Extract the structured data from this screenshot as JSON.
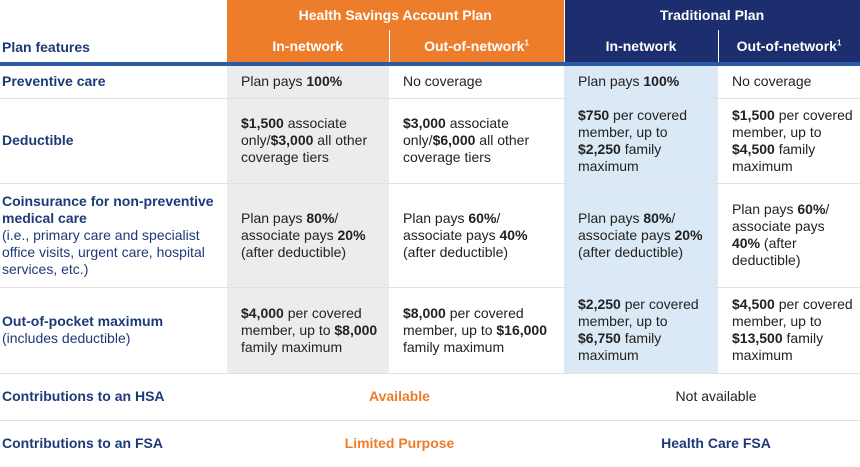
{
  "header": {
    "plan_features": "Plan features",
    "plans": [
      {
        "name": "Health Savings Account Plan",
        "columns": [
          {
            "label": "In-network"
          },
          {
            "label": "Out-of-network",
            "note": "1"
          }
        ]
      },
      {
        "name": "Traditional Plan",
        "columns": [
          {
            "label": "In-network"
          },
          {
            "label": "Out-of-network",
            "note": "1"
          }
        ]
      }
    ]
  },
  "rows": [
    {
      "feature": "Preventive care",
      "cells": [
        {
          "runs": [
            "Plan pays ",
            {
              "text": "100%",
              "bold": true
            }
          ]
        },
        {
          "runs": [
            "No coverage"
          ]
        },
        {
          "runs": [
            "Plan pays ",
            {
              "text": "100%",
              "bold": true
            }
          ]
        },
        {
          "runs": [
            "No coverage"
          ]
        }
      ]
    },
    {
      "feature": "Deductible",
      "cells": [
        {
          "runs": [
            {
              "text": "$1,500",
              "bold": true
            },
            " associate only/",
            {
              "text": "$3,000",
              "bold": true
            },
            " all other coverage tiers"
          ]
        },
        {
          "runs": [
            {
              "text": "$3,000",
              "bold": true
            },
            " associate only/",
            {
              "text": "$6,000",
              "bold": true
            },
            " all other coverage tiers"
          ]
        },
        {
          "runs": [
            {
              "text": "$750",
              "bold": true
            },
            " per covered member, up to ",
            {
              "text": "$2,250",
              "bold": true
            },
            " family maximum"
          ]
        },
        {
          "runs": [
            {
              "text": "$1,500",
              "bold": true
            },
            " per covered member, up to ",
            {
              "text": "$4,500",
              "bold": true
            },
            " family maximum"
          ]
        }
      ]
    },
    {
      "feature": "Coinsurance for non-preventive medical care",
      "detail": "(i.e., primary care and specialist office visits, urgent care, hospital services, etc.)",
      "cells": [
        {
          "runs": [
            "Plan pays ",
            {
              "text": "80%",
              "bold": true
            },
            "/ associate pays ",
            {
              "text": "20%",
              "bold": true
            },
            " (after deductible)"
          ]
        },
        {
          "runs": [
            "Plan pays ",
            {
              "text": "60%",
              "bold": true
            },
            "/ associate pays ",
            {
              "text": "40%",
              "bold": true
            },
            " (after deductible)"
          ]
        },
        {
          "runs": [
            "Plan pays ",
            {
              "text": "80%",
              "bold": true
            },
            "/ associate pays ",
            {
              "text": "20%",
              "bold": true
            },
            " (after deductible)"
          ]
        },
        {
          "runs": [
            "Plan pays ",
            {
              "text": "60%",
              "bold": true
            },
            "/ associate pays ",
            {
              "text": "40%",
              "bold": true
            },
            " (after deductible)"
          ]
        }
      ]
    },
    {
      "feature": "Out-of-pocket maximum",
      "detail": "(includes deductible)",
      "cells": [
        {
          "runs": [
            {
              "text": "$4,000",
              "bold": true
            },
            " per covered member, up to ",
            {
              "text": "$8,000",
              "bold": true
            },
            " family maximum"
          ]
        },
        {
          "runs": [
            {
              "text": "$8,000",
              "bold": true
            },
            " per covered member, up to ",
            {
              "text": "$16,000",
              "bold": true
            },
            " family maximum"
          ]
        },
        {
          "runs": [
            {
              "text": "$2,250",
              "bold": true
            },
            " per covered member, up to ",
            {
              "text": "$6,750",
              "bold": true
            },
            " family maximum"
          ]
        },
        {
          "runs": [
            {
              "text": "$4,500",
              "bold": true
            },
            " per covered member, up to ",
            {
              "text": "$13,500",
              "bold": true
            },
            " family maximum"
          ]
        }
      ]
    },
    {
      "feature": "Contributions to an HSA",
      "cells": [
        {
          "span": 2,
          "color": "#ee7d2b",
          "runs": [
            {
              "text": "Available",
              "bold": true
            }
          ]
        },
        {
          "span": 2,
          "runs": [
            "Not available"
          ]
        }
      ]
    },
    {
      "feature": "Contributions to an FSA",
      "cells": [
        {
          "span": 2,
          "color": "#ee7d2b",
          "runs": [
            {
              "text": "Limited Purpose",
              "bold": true
            }
          ]
        },
        {
          "span": 2,
          "color": "#1d3a78",
          "runs": [
            {
              "text": "Health Care FSA",
              "bold": true
            }
          ]
        }
      ]
    }
  ]
}
